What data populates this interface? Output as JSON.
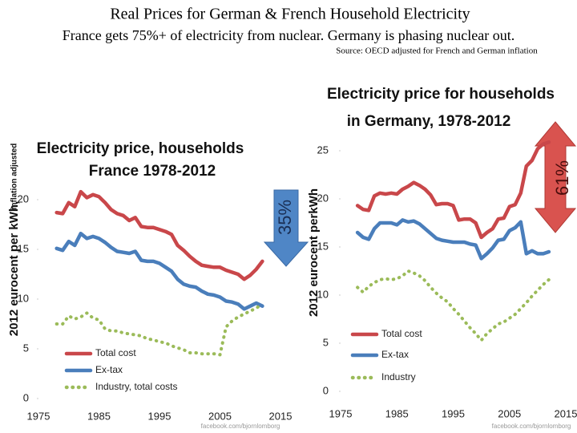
{
  "header": {
    "title": "Real Prices for German & French Household Electricity",
    "subtitle": "France gets 75%+ of electricity from nuclear.  Germany is phasing nuclear out.",
    "source": "Source:  OECD adjusted for French and German inflation"
  },
  "chart_data": [
    {
      "type": "line",
      "title": [
        "Electricity price, households",
        "France 1978-2012"
      ],
      "y_label": "2012 eurocent per kWh,",
      "y_label_note": "inflation adjusted",
      "annotations": [
        "35%",
        "facebook.com/bjornlomborg"
      ],
      "xlim": [
        1975,
        2015
      ],
      "xticks": [
        1975,
        1985,
        1995,
        2005,
        2015
      ],
      "ylim": [
        0,
        22
      ],
      "yticks": [
        0,
        5,
        10,
        15,
        20
      ],
      "grid": false,
      "x": [
        1978,
        1979,
        1980,
        1981,
        1982,
        1983,
        1984,
        1985,
        1986,
        1987,
        1988,
        1989,
        1990,
        1991,
        1992,
        1993,
        1994,
        1995,
        1996,
        1997,
        1998,
        1999,
        2000,
        2001,
        2002,
        2003,
        2004,
        2005,
        2006,
        2007,
        2008,
        2009,
        2010,
        2011,
        2012
      ],
      "series": [
        {
          "name": "Total cost",
          "color": "#c9474a",
          "style": "solid",
          "values": [
            18.7,
            18.6,
            19.7,
            19.3,
            20.8,
            20.2,
            20.5,
            20.3,
            19.7,
            19.0,
            18.6,
            18.4,
            17.9,
            18.2,
            17.3,
            17.2,
            17.2,
            17.0,
            16.8,
            16.5,
            15.4,
            14.9,
            14.3,
            13.8,
            13.4,
            13.3,
            13.2,
            13.2,
            12.9,
            12.7,
            12.5,
            12.0,
            12.4,
            13.0,
            13.8
          ]
        },
        {
          "name": "Ex-tax",
          "color": "#4a7ebb",
          "style": "solid",
          "values": [
            15.1,
            14.9,
            15.8,
            15.4,
            16.6,
            16.1,
            16.3,
            16.1,
            15.7,
            15.2,
            14.8,
            14.7,
            14.6,
            14.8,
            13.9,
            13.8,
            13.8,
            13.6,
            13.2,
            12.8,
            12.0,
            11.5,
            11.3,
            11.2,
            10.8,
            10.5,
            10.4,
            10.2,
            9.8,
            9.7,
            9.5,
            9.0,
            9.3,
            9.6,
            9.3
          ]
        },
        {
          "name": "Industry, total costs",
          "color": "#9bbb59",
          "style": "dotted",
          "values": [
            7.5,
            7.5,
            8.3,
            8.0,
            8.2,
            8.6,
            8.1,
            7.9,
            7.0,
            6.8,
            6.8,
            6.6,
            6.5,
            6.4,
            6.3,
            6.0,
            5.9,
            5.7,
            5.6,
            5.3,
            5.1,
            4.9,
            4.6,
            4.6,
            4.5,
            4.5,
            4.5,
            4.4,
            7.2,
            7.8,
            8.2,
            8.5,
            8.8,
            9.1,
            9.5
          ]
        }
      ]
    },
    {
      "type": "line",
      "title": [
        "Electricity price for households",
        "in Germany, 1978-2012"
      ],
      "y_label": "2012 eurocent perkWh",
      "annotations": [
        "61%",
        "facebook.com/bjornlomborg"
      ],
      "xlim": [
        1975,
        2015
      ],
      "xticks": [
        1975,
        1985,
        1995,
        2005,
        2015
      ],
      "ylim": [
        0,
        27
      ],
      "yticks": [
        0,
        5,
        10,
        15,
        20,
        25
      ],
      "grid": false,
      "x": [
        1978,
        1979,
        1980,
        1981,
        1982,
        1983,
        1984,
        1985,
        1986,
        1987,
        1988,
        1989,
        1990,
        1991,
        1992,
        1993,
        1994,
        1995,
        1996,
        1997,
        1998,
        1999,
        2000,
        2001,
        2002,
        2003,
        2004,
        2005,
        2006,
        2007,
        2008,
        2009,
        2010,
        2011,
        2012
      ],
      "series": [
        {
          "name": "Total cost",
          "color": "#c9474a",
          "style": "solid",
          "values": [
            19.3,
            18.9,
            18.8,
            20.3,
            20.6,
            20.5,
            20.6,
            20.5,
            21.0,
            21.3,
            21.7,
            21.4,
            21.0,
            20.4,
            19.4,
            19.5,
            19.5,
            19.3,
            17.8,
            17.9,
            17.9,
            17.5,
            16.0,
            16.5,
            16.9,
            17.9,
            18.0,
            19.2,
            19.4,
            20.6,
            23.4,
            24.0,
            25.2,
            25.7,
            25.9
          ]
        },
        {
          "name": "Ex-tax",
          "color": "#4a7ebb",
          "style": "solid",
          "values": [
            16.5,
            16.0,
            15.8,
            16.9,
            17.5,
            17.5,
            17.5,
            17.3,
            17.8,
            17.6,
            17.7,
            17.4,
            16.9,
            16.4,
            15.9,
            15.7,
            15.6,
            15.5,
            15.5,
            15.5,
            15.3,
            15.2,
            13.8,
            14.3,
            14.9,
            15.7,
            15.8,
            16.7,
            17.0,
            17.6,
            14.3,
            14.6,
            14.3,
            14.3,
            14.5
          ]
        },
        {
          "name": "Industry",
          "color": "#9bbb59",
          "style": "dotted",
          "values": [
            10.8,
            10.3,
            10.9,
            11.3,
            11.6,
            11.7,
            11.6,
            11.7,
            12.0,
            12.5,
            12.3,
            12.0,
            11.5,
            10.8,
            10.2,
            9.7,
            9.3,
            8.6,
            8.0,
            7.3,
            6.6,
            6.0,
            5.3,
            6.0,
            6.5,
            7.0,
            7.2,
            7.6,
            8.0,
            8.6,
            9.2,
            9.9,
            10.5,
            11.1,
            11.6
          ]
        }
      ]
    }
  ]
}
